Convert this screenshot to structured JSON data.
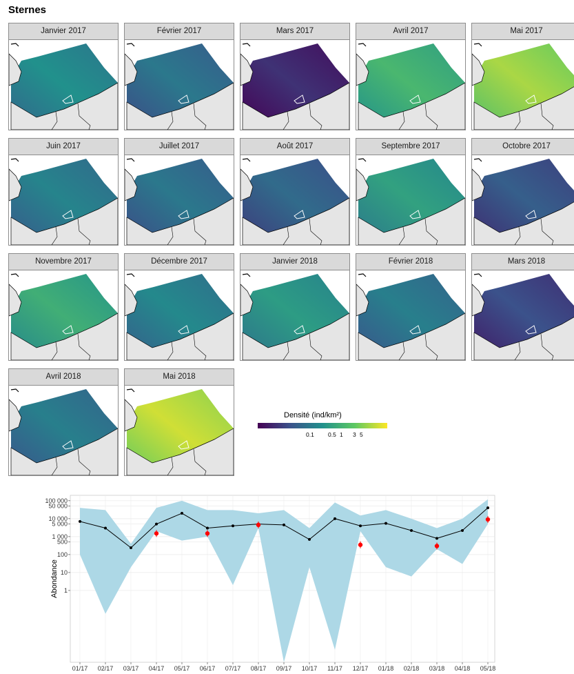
{
  "title": "Sternes",
  "panels": [
    {
      "label": "Janvier 2017",
      "level": 0.45
    },
    {
      "label": "Février 2017",
      "level": 0.35
    },
    {
      "label": "Mars 2017",
      "level": 0.1
    },
    {
      "label": "Avril 2017",
      "level": 0.62
    },
    {
      "label": "Mai 2017",
      "level": 0.82
    },
    {
      "label": "Juin 2017",
      "level": 0.4
    },
    {
      "label": "Juillet 2017",
      "level": 0.35
    },
    {
      "label": "Août 2017",
      "level": 0.3
    },
    {
      "label": "Septembre 2017",
      "level": 0.52
    },
    {
      "label": "Octobre 2017",
      "level": 0.25
    },
    {
      "label": "Novembre 2017",
      "level": 0.58
    },
    {
      "label": "Décembre 2017",
      "level": 0.42
    },
    {
      "label": "Janvier 2018",
      "level": 0.5
    },
    {
      "label": "Février 2018",
      "level": 0.38
    },
    {
      "label": "Mars 2018",
      "level": 0.2
    },
    {
      "label": "Avril 2018",
      "level": 0.38
    },
    {
      "label": "Mai 2018",
      "level": 0.88
    }
  ],
  "legend": {
    "title": "Densité (ind/km²)",
    "ticks": [
      "0.1",
      "0.5",
      "1",
      "3",
      "5"
    ],
    "colors": [
      "#440154",
      "#3b528b",
      "#21918c",
      "#5ec962",
      "#fde725"
    ]
  },
  "chart_data": {
    "type": "line",
    "xlabel": "",
    "ylabel": "Abondance",
    "y_scale": "log",
    "y_tick_labels": [
      "100 000",
      "50 000",
      "10 000",
      "5 000",
      "1 000",
      "500",
      "100",
      "10",
      "1"
    ],
    "y_tick_values": [
      100000,
      50000,
      10000,
      5000,
      1000,
      500,
      100,
      10,
      1
    ],
    "ylim": [
      0.0001,
      200000
    ],
    "categories": [
      "01/17",
      "02/17",
      "03/17",
      "04/17",
      "05/17",
      "06/17",
      "07/17",
      "08/17",
      "09/17",
      "10/17",
      "11/17",
      "12/17",
      "01/18",
      "02/18",
      "03/18",
      "04/18",
      "05/18"
    ],
    "series": [
      {
        "values": [
          7000,
          3000,
          240,
          5000,
          20000,
          3000,
          4000,
          5000,
          4500,
          700,
          10000,
          4000,
          5500,
          2200,
          800,
          2200,
          40000
        ],
        "color": "#000000"
      }
    ],
    "ribbon": {
      "lower": [
        100,
        0.05,
        20,
        2000,
        600,
        1000,
        2,
        3000,
        0.0001,
        20,
        0.0005,
        2000,
        20,
        6,
        200,
        30,
        5000
      ],
      "upper": [
        40000,
        30000,
        400,
        40000,
        100000,
        30000,
        30000,
        20000,
        30000,
        3000,
        80000,
        15000,
        30000,
        10000,
        3000,
        10000,
        120000
      ],
      "color": "#add8e6"
    },
    "observations": [
      {
        "x": "04/17",
        "y": 1500
      },
      {
        "x": "06/17",
        "y": 1500
      },
      {
        "x": "08/17",
        "y": 4500
      },
      {
        "x": "12/17",
        "y": 350
      },
      {
        "x": "03/18",
        "y": 300
      },
      {
        "x": "05/18",
        "y": 9000
      }
    ],
    "observation_color": "#ff0000",
    "grid": true
  }
}
